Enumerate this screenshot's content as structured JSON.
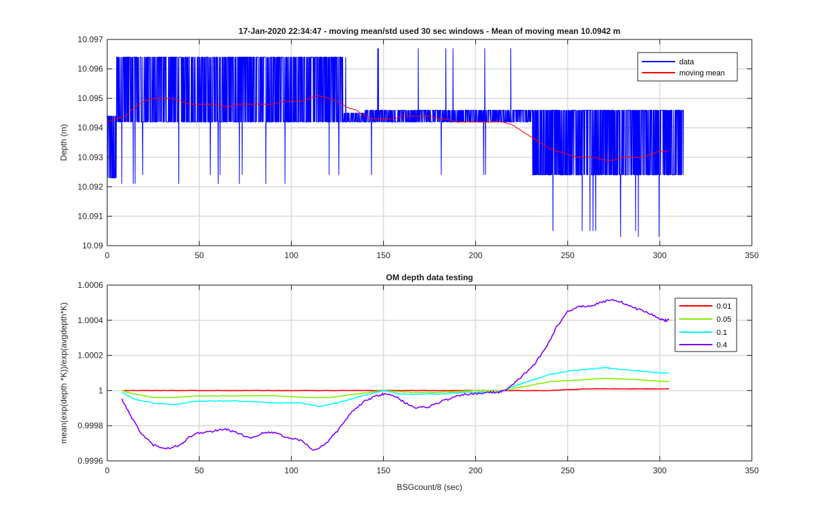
{
  "chart_data": [
    {
      "type": "line",
      "title": "17-Jan-2020 22:34:47 - moving mean/std used 30 sec windows - Mean of moving mean 10.0942 m",
      "xlabel": "",
      "ylabel": "Depth (m)",
      "xlim": [
        0,
        350
      ],
      "ylim": [
        10.09,
        10.097
      ],
      "xticks": [
        0,
        50,
        100,
        150,
        200,
        250,
        300,
        350
      ],
      "xtick_labels": [
        "0",
        "50",
        "100",
        "150",
        "200",
        "250",
        "300",
        "350"
      ],
      "yticks": [
        10.09,
        10.091,
        10.092,
        10.093,
        10.094,
        10.095,
        10.096,
        10.097
      ],
      "ytick_labels": [
        "10.09",
        "10.091",
        "10.092",
        "10.093",
        "10.094",
        "10.095",
        "10.096",
        "10.097"
      ],
      "grid": true,
      "legend_position": "top-right",
      "series": [
        {
          "name": "data",
          "color": "#0000ff",
          "style": "noisy quantized signal",
          "segments": [
            {
              "x_start": 0,
              "x_end": 5,
              "levels": [
                10.0923,
                10.0944
              ],
              "spikes": [
                10.0921
              ]
            },
            {
              "x_start": 5,
              "x_end": 128,
              "levels": [
                10.0942,
                10.0964
              ],
              "spikes": [
                10.0921,
                10.0924
              ]
            },
            {
              "x_start": 128,
              "x_end": 140,
              "levels": [
                10.0942,
                10.0945
              ],
              "spikes": [
                10.0923,
                10.0964
              ]
            },
            {
              "x_start": 140,
              "x_end": 231,
              "levels": [
                10.0942,
                10.0946
              ],
              "spikes": [
                10.0924,
                10.0967
              ]
            },
            {
              "x_start": 231,
              "x_end": 313,
              "levels": [
                10.0924,
                10.0946
              ],
              "spikes": [
                10.0905,
                10.0903
              ]
            }
          ]
        },
        {
          "name": "moving mean",
          "color": "#ff0000",
          "x": [
            0,
            5,
            10,
            15,
            20,
            25,
            30,
            35,
            40,
            45,
            50,
            55,
            60,
            65,
            70,
            75,
            80,
            85,
            90,
            95,
            100,
            105,
            110,
            115,
            120,
            125,
            130,
            135,
            140,
            145,
            150,
            155,
            160,
            165,
            170,
            175,
            180,
            185,
            190,
            195,
            200,
            205,
            210,
            215,
            220,
            225,
            230,
            235,
            240,
            245,
            250,
            255,
            260,
            265,
            270,
            275,
            280,
            285,
            290,
            295,
            300,
            305
          ],
          "y": [
            10.0942,
            10.0943,
            10.0944,
            10.0947,
            10.0949,
            10.095,
            10.095,
            10.095,
            10.0949,
            10.0948,
            10.0948,
            10.0948,
            10.0948,
            10.0947,
            10.0948,
            10.0948,
            10.0948,
            10.0948,
            10.0948,
            10.0949,
            10.0949,
            10.0949,
            10.095,
            10.0951,
            10.095,
            10.0949,
            10.0947,
            10.0946,
            10.0944,
            10.0943,
            10.0943,
            10.0943,
            10.0944,
            10.0944,
            10.0944,
            10.0944,
            10.0943,
            10.0943,
            10.0942,
            10.0942,
            10.0942,
            10.0942,
            10.0942,
            10.0942,
            10.0941,
            10.0939,
            10.0937,
            10.0935,
            10.0933,
            10.0932,
            10.0931,
            10.093,
            10.093,
            10.093,
            10.0929,
            10.0929,
            10.093,
            10.093,
            10.093,
            10.0931,
            10.0932,
            10.0932
          ]
        }
      ]
    },
    {
      "type": "line",
      "title": "OM depth data testing",
      "xlabel": "BSGcount/8 (sec)",
      "ylabel": "mean(exp(depth *K))/exp(avgdepth*K)",
      "xlim": [
        0,
        350
      ],
      "ylim": [
        0.9996,
        1.0006
      ],
      "xticks": [
        0,
        50,
        100,
        150,
        200,
        250,
        300,
        350
      ],
      "xtick_labels": [
        "0",
        "50",
        "100",
        "150",
        "200",
        "250",
        "300",
        "350"
      ],
      "yticks": [
        0.9996,
        0.9998,
        1.0,
        1.0002,
        1.0004,
        1.0006
      ],
      "ytick_labels": [
        "0.9996",
        "0.9998",
        "1",
        "1.0002",
        "1.0004",
        "1.0006"
      ],
      "grid": true,
      "legend_position": "top-right",
      "series": [
        {
          "name": "0.01",
          "color": "#ff0000",
          "x": [
            8,
            20,
            30,
            50,
            70,
            90,
            110,
            130,
            150,
            170,
            190,
            210,
            220,
            240,
            260,
            280,
            300,
            305
          ],
          "y": [
            1.0,
            1.0,
            1.0,
            1.0,
            1.0,
            1.0,
            1.0,
            1.0,
            1.0,
            1.0,
            1.0,
            1.0,
            1.0,
            1.0,
            1.00001,
            1.00001,
            1.00001,
            1.00001
          ]
        },
        {
          "name": "0.05",
          "color": "#7ff000",
          "x": [
            8,
            15,
            25,
            35,
            50,
            70,
            90,
            110,
            120,
            135,
            150,
            165,
            180,
            200,
            215,
            225,
            240,
            255,
            270,
            290,
            305
          ],
          "y": [
            1.0,
            0.99998,
            0.99996,
            0.99996,
            0.99997,
            0.99997,
            0.99997,
            0.99996,
            0.99996,
            0.99998,
            1.0,
            0.99999,
            0.99999,
            1.0,
            1.0,
            1.00002,
            1.00005,
            1.00006,
            1.00007,
            1.00006,
            1.00005
          ]
        },
        {
          "name": "0.1",
          "color": "#00ffff",
          "x": [
            8,
            15,
            25,
            35,
            50,
            60,
            70,
            90,
            105,
            115,
            125,
            135,
            150,
            160,
            170,
            180,
            195,
            210,
            215,
            225,
            240,
            250,
            260,
            270,
            280,
            290,
            300,
            305
          ],
          "y": [
            0.99999,
            0.99995,
            0.99993,
            0.99992,
            0.99994,
            0.99994,
            0.99994,
            0.99993,
            0.99993,
            0.99991,
            0.99993,
            0.99996,
            1.0,
            0.99998,
            0.99998,
            0.99998,
            0.99999,
            0.99999,
            1.0,
            1.00004,
            1.00009,
            1.00011,
            1.00012,
            1.00013,
            1.00012,
            1.00011,
            1.0001,
            1.0001
          ]
        },
        {
          "name": "0.4",
          "color": "#7f00ff",
          "x": [
            8,
            12,
            18,
            25,
            32,
            40,
            45,
            50,
            58,
            65,
            70,
            78,
            85,
            92,
            98,
            105,
            112,
            118,
            125,
            132,
            140,
            146,
            150,
            156,
            162,
            168,
            175,
            182,
            188,
            195,
            200,
            206,
            212,
            216,
            220,
            226,
            232,
            238,
            244,
            250,
            256,
            262,
            268,
            274,
            280,
            286,
            292,
            298,
            302,
            305
          ],
          "y": [
            0.99995,
            0.99987,
            0.99976,
            0.99969,
            0.99967,
            0.99969,
            0.99974,
            0.99976,
            0.99977,
            0.99978,
            0.99976,
            0.99973,
            0.99976,
            0.99976,
            0.99973,
            0.99972,
            0.99966,
            0.99969,
            0.99977,
            0.99987,
            0.99994,
            0.99997,
            0.99998,
            0.99997,
            0.99993,
            0.9999,
            0.99991,
            0.99994,
            0.99996,
            0.99998,
            0.99998,
            0.99999,
            0.99999,
            1.0,
            1.00003,
            1.00009,
            1.00015,
            1.00024,
            1.00036,
            1.00045,
            1.00048,
            1.00048,
            1.0005,
            1.00052,
            1.0005,
            1.00047,
            1.00045,
            1.00042,
            1.0004,
            1.0004
          ]
        }
      ]
    }
  ]
}
